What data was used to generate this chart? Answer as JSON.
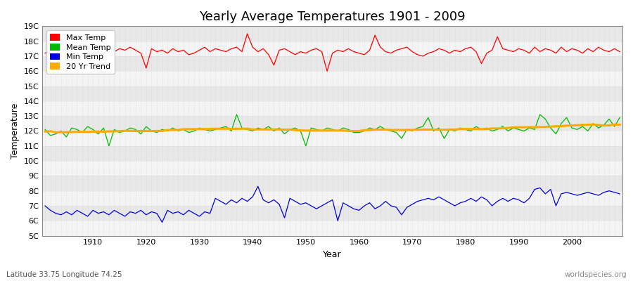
{
  "title": "Yearly Average Temperatures 1901 - 2009",
  "xlabel": "Year",
  "ylabel": "Temperature",
  "subtitle_left": "Latitude 33.75 Longitude 74.25",
  "subtitle_right": "worldspecies.org",
  "start_year": 1901,
  "end_year": 2009,
  "ylim": [
    5,
    19
  ],
  "yticks": [
    5,
    6,
    7,
    8,
    9,
    10,
    11,
    12,
    13,
    14,
    15,
    16,
    17,
    18,
    19
  ],
  "ytick_labels": [
    "5C",
    "6C",
    "7C",
    "8C",
    "9C",
    "10C",
    "11C",
    "12C",
    "13C",
    "14C",
    "15C",
    "16C",
    "17C",
    "18C",
    "19C"
  ],
  "fig_bg_color": "#ffffff",
  "plot_bg_color": "#e8e8e8",
  "stripe_color": "#f4f4f4",
  "grid_v_color": "#cccccc",
  "max_temp_color": "#ff0000",
  "mean_temp_color": "#00bb00",
  "min_temp_color": "#0000dd",
  "trend_color": "#ffaa00",
  "legend_labels": [
    "Max Temp",
    "Mean Temp",
    "Min Temp",
    "20 Yr Trend"
  ],
  "max_temp": [
    17.2,
    17.4,
    17.3,
    17.2,
    17.5,
    17.8,
    17.6,
    17.3,
    17.5,
    17.8,
    17.6,
    17.2,
    17.0,
    17.3,
    17.5,
    17.4,
    17.6,
    17.4,
    17.2,
    16.2,
    17.5,
    17.3,
    17.4,
    17.2,
    17.5,
    17.3,
    17.4,
    17.1,
    17.2,
    17.4,
    17.6,
    17.3,
    17.5,
    17.4,
    17.3,
    17.5,
    17.6,
    17.3,
    18.5,
    17.6,
    17.3,
    17.5,
    17.1,
    16.4,
    17.4,
    17.5,
    17.3,
    17.1,
    17.3,
    17.2,
    17.4,
    17.5,
    17.3,
    16.0,
    17.2,
    17.4,
    17.3,
    17.5,
    17.3,
    17.2,
    17.1,
    17.4,
    18.4,
    17.6,
    17.3,
    17.2,
    17.4,
    17.5,
    17.6,
    17.3,
    17.1,
    17.0,
    17.2,
    17.3,
    17.5,
    17.4,
    17.2,
    17.4,
    17.3,
    17.5,
    17.6,
    17.3,
    16.5,
    17.2,
    17.4,
    18.3,
    17.5,
    17.4,
    17.3,
    17.5,
    17.4,
    17.2,
    17.6,
    17.3,
    17.5,
    17.4,
    17.2,
    17.6,
    17.3,
    17.5,
    17.4,
    17.2,
    17.5,
    17.3,
    17.6,
    17.4,
    17.3,
    17.5,
    17.3
  ],
  "mean_temp": [
    12.1,
    11.7,
    11.8,
    12.0,
    11.6,
    12.2,
    12.1,
    11.9,
    12.3,
    12.1,
    11.8,
    12.2,
    11.0,
    12.1,
    11.9,
    12.0,
    12.2,
    12.1,
    11.8,
    12.3,
    12.0,
    11.9,
    12.1,
    12.0,
    12.2,
    12.0,
    12.1,
    11.9,
    12.0,
    12.2,
    12.1,
    12.0,
    12.1,
    12.2,
    12.3,
    12.0,
    13.1,
    12.2,
    12.1,
    12.0,
    12.2,
    12.1,
    12.3,
    12.0,
    12.2,
    11.8,
    12.1,
    12.2,
    12.0,
    11.0,
    12.2,
    12.1,
    12.0,
    12.2,
    12.1,
    12.0,
    12.2,
    12.1,
    11.9,
    11.9,
    12.0,
    12.2,
    12.1,
    12.3,
    12.1,
    12.0,
    11.9,
    11.5,
    12.1,
    12.0,
    12.2,
    12.3,
    12.9,
    12.0,
    12.2,
    11.5,
    12.1,
    12.0,
    12.2,
    12.1,
    12.0,
    12.3,
    12.1,
    12.2,
    12.0,
    12.1,
    12.3,
    12.0,
    12.2,
    12.1,
    12.0,
    12.2,
    12.1,
    13.1,
    12.8,
    12.2,
    11.8,
    12.5,
    12.9,
    12.2,
    12.1,
    12.3,
    12.0,
    12.5,
    12.2,
    12.4,
    12.8,
    12.3,
    12.9
  ],
  "min_temp": [
    7.0,
    6.7,
    6.5,
    6.4,
    6.6,
    6.4,
    6.7,
    6.5,
    6.3,
    6.7,
    6.5,
    6.6,
    6.4,
    6.7,
    6.5,
    6.3,
    6.6,
    6.5,
    6.7,
    6.4,
    6.6,
    6.5,
    5.9,
    6.7,
    6.5,
    6.6,
    6.4,
    6.7,
    6.5,
    6.3,
    6.6,
    6.5,
    7.5,
    7.3,
    7.1,
    7.4,
    7.2,
    7.5,
    7.3,
    7.6,
    8.3,
    7.4,
    7.2,
    7.4,
    7.1,
    6.2,
    7.5,
    7.3,
    7.1,
    7.2,
    7.0,
    6.8,
    7.0,
    7.2,
    7.4,
    6.0,
    7.2,
    7.0,
    6.8,
    6.7,
    7.0,
    7.2,
    6.8,
    7.0,
    7.3,
    7.0,
    6.9,
    6.4,
    6.9,
    7.1,
    7.3,
    7.4,
    7.5,
    7.4,
    7.6,
    7.4,
    7.2,
    7.0,
    7.2,
    7.3,
    7.5,
    7.3,
    7.6,
    7.4,
    7.0,
    7.3,
    7.5,
    7.3,
    7.5,
    7.4,
    7.2,
    7.5,
    8.1,
    8.2,
    7.8,
    8.1,
    7.0,
    7.8,
    7.9,
    7.8,
    7.7,
    7.8,
    7.9,
    7.8,
    7.7,
    7.9,
    8.0,
    7.9,
    7.8
  ]
}
